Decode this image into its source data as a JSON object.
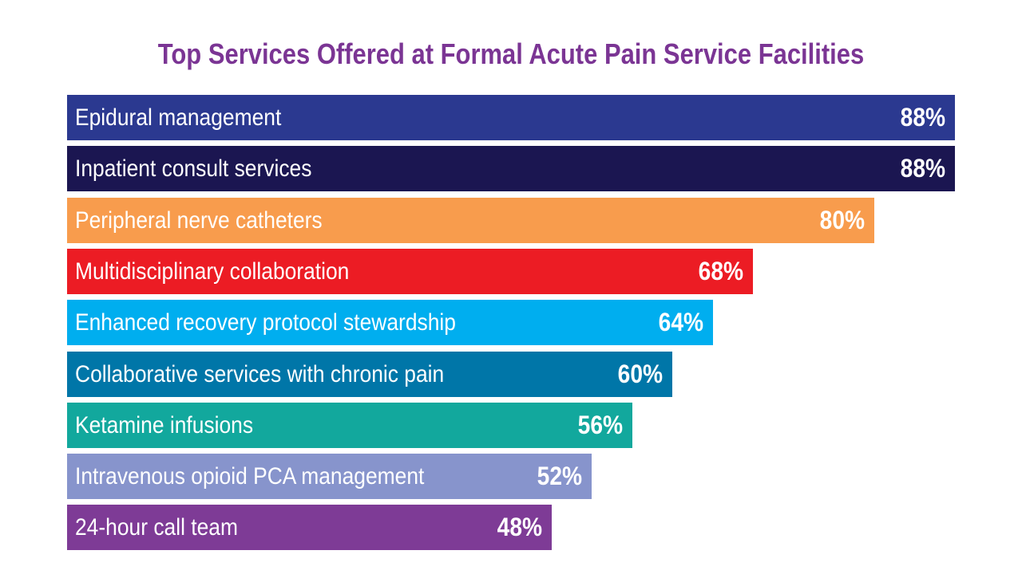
{
  "chart_data": {
    "type": "bar",
    "orientation": "horizontal",
    "title": "Top Services Offered at Formal Acute Pain Service Facilities",
    "xlim": [
      0,
      88
    ],
    "grid": false,
    "legend": "none",
    "categories": [
      "Epidural management",
      "Inpatient consult services",
      "Peripheral nerve catheters",
      "Multidisciplinary collaboration",
      "Enhanced recovery protocol stewardship",
      "Collaborative services with chronic pain",
      "Ketamine infusions",
      "Intravenous opioid PCA management",
      "24-hour call team"
    ],
    "values": [
      88,
      88,
      80,
      68,
      64,
      60,
      56,
      52,
      48
    ],
    "value_labels": [
      "88%",
      "88%",
      "80%",
      "68%",
      "64%",
      "60%",
      "56%",
      "52%",
      "48%"
    ],
    "colors": [
      "#2b3990",
      "#1b1651",
      "#f89c4d",
      "#ec1c24",
      "#00aeef",
      "#0076a8",
      "#12a89d",
      "#8794cc",
      "#7e3b96"
    ],
    "title_color": "#7b3594"
  }
}
